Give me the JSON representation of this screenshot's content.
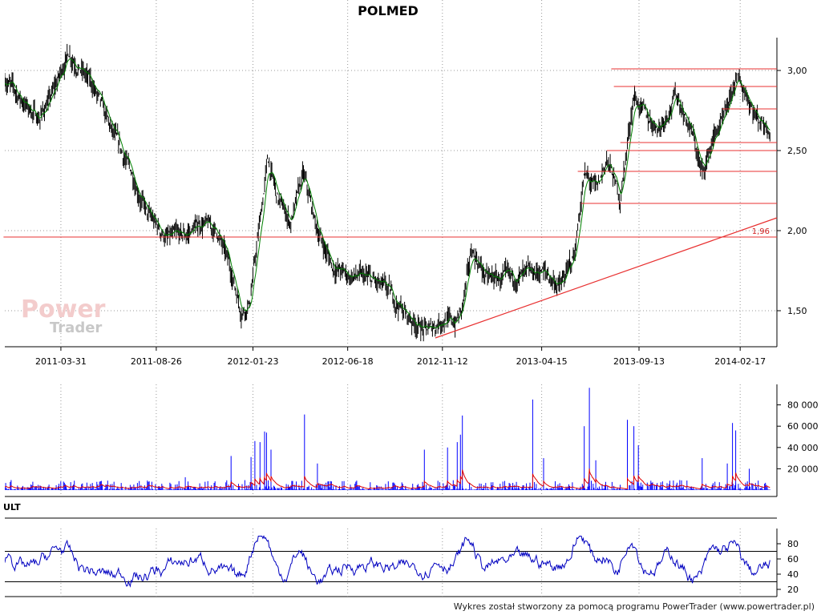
{
  "title": "POLMED",
  "watermark": {
    "line1": "Power",
    "line2": "Trader"
  },
  "footer": "Wykres został stworzony za pomocą programu PowerTrader (www.powertrader.pl)",
  "colors": {
    "price_line": "#008000",
    "bar": "#000000",
    "support_lines": "#e83030",
    "volume": "#0000ff",
    "volume_avg": "#e00000",
    "osc_line": "#0000c0",
    "grid": "#999999"
  },
  "chart_data": [
    {
      "type": "line",
      "panel": "price",
      "title": "POLMED",
      "x_labels": [
        "2011-03-31",
        "2011-08-26",
        "2012-01-23",
        "2012-06-18",
        "2012-11-12",
        "2013-04-15",
        "2013-09-13",
        "2014-02-17"
      ],
      "y_ticks": [
        "1,50",
        "2,00",
        "2,50",
        "3,00"
      ],
      "ylim": [
        1.3,
        3.2
      ],
      "price_keypoints": [
        {
          "date": "2011-01-03",
          "close": 2.95
        },
        {
          "date": "2011-02-01",
          "close": 2.8
        },
        {
          "date": "2011-02-25",
          "close": 2.7
        },
        {
          "date": "2011-03-18",
          "close": 2.85
        },
        {
          "date": "2011-04-12",
          "close": 3.12
        },
        {
          "date": "2011-05-02",
          "close": 3.0
        },
        {
          "date": "2011-05-20",
          "close": 2.9
        },
        {
          "date": "2011-06-20",
          "close": 2.6
        },
        {
          "date": "2011-07-20",
          "close": 2.35
        },
        {
          "date": "2011-08-12",
          "close": 2.1
        },
        {
          "date": "2011-09-12",
          "close": 1.95
        },
        {
          "date": "2011-10-10",
          "close": 1.97
        },
        {
          "date": "2011-11-04",
          "close": 2.05
        },
        {
          "date": "2011-11-28",
          "close": 2.0
        },
        {
          "date": "2011-12-20",
          "close": 1.75
        },
        {
          "date": "2012-01-05",
          "close": 1.5
        },
        {
          "date": "2012-01-18",
          "close": 1.55
        },
        {
          "date": "2012-02-06",
          "close": 2.15
        },
        {
          "date": "2012-02-15",
          "close": 2.45
        },
        {
          "date": "2012-03-01",
          "close": 2.2
        },
        {
          "date": "2012-03-22",
          "close": 2.05
        },
        {
          "date": "2012-04-10",
          "close": 2.35
        },
        {
          "date": "2012-05-02",
          "close": 2.0
        },
        {
          "date": "2012-05-25",
          "close": 1.78
        },
        {
          "date": "2012-06-18",
          "close": 1.72
        },
        {
          "date": "2012-07-20",
          "close": 1.7
        },
        {
          "date": "2012-08-20",
          "close": 1.62
        },
        {
          "date": "2012-09-20",
          "close": 1.46
        },
        {
          "date": "2012-10-20",
          "close": 1.37
        },
        {
          "date": "2012-11-12",
          "close": 1.45
        },
        {
          "date": "2012-12-01",
          "close": 1.42
        },
        {
          "date": "2012-12-12",
          "close": 1.5
        },
        {
          "date": "2012-12-28",
          "close": 1.88
        },
        {
          "date": "2013-01-20",
          "close": 1.7
        },
        {
          "date": "2013-03-01",
          "close": 1.7
        },
        {
          "date": "2013-03-25",
          "close": 1.72
        },
        {
          "date": "2013-04-15",
          "close": 1.75
        },
        {
          "date": "2013-05-15",
          "close": 1.65
        },
        {
          "date": "2013-06-05",
          "close": 1.85
        },
        {
          "date": "2013-06-20",
          "close": 2.35
        },
        {
          "date": "2013-07-10",
          "close": 2.25
        },
        {
          "date": "2013-07-25",
          "close": 2.45
        },
        {
          "date": "2013-08-15",
          "close": 2.2
        },
        {
          "date": "2013-09-05",
          "close": 2.85
        },
        {
          "date": "2013-09-25",
          "close": 2.7
        },
        {
          "date": "2013-10-15",
          "close": 2.65
        },
        {
          "date": "2013-11-10",
          "close": 2.85
        },
        {
          "date": "2013-12-05",
          "close": 2.6
        },
        {
          "date": "2013-12-20",
          "close": 2.35
        },
        {
          "date": "2014-01-08",
          "close": 2.6
        },
        {
          "date": "2014-01-25",
          "close": 2.7
        },
        {
          "date": "2014-02-10",
          "close": 2.95
        },
        {
          "date": "2014-02-28",
          "close": 2.85
        },
        {
          "date": "2014-03-15",
          "close": 2.7
        },
        {
          "date": "2014-04-05",
          "close": 2.65
        }
      ],
      "horizontal_lines": [
        {
          "value": 3.01,
          "from": "2013-08-01",
          "to": "2014-04-15"
        },
        {
          "value": 2.9,
          "from": "2013-08-05",
          "to": "2014-04-15"
        },
        {
          "value": 2.76,
          "from": "2014-01-20",
          "to": "2014-04-15"
        },
        {
          "value": 2.55,
          "from": "2013-08-15",
          "to": "2014-04-15"
        },
        {
          "value": 2.5,
          "from": "2013-07-25",
          "to": "2014-04-15"
        },
        {
          "value": 2.37,
          "from": "2013-06-10",
          "to": "2014-04-15"
        },
        {
          "value": 2.17,
          "from": "2013-06-15",
          "to": "2014-04-15"
        },
        {
          "value": 1.96,
          "from": "2011-01-01",
          "to": "2014-04-15",
          "label": "1,96"
        }
      ],
      "trendline": {
        "from": {
          "date": "2012-11-01",
          "value": 1.33
        },
        "to": {
          "date": "2014-04-15",
          "value": 2.08
        }
      }
    },
    {
      "type": "bar",
      "panel": "volume",
      "y_ticks": [
        "20 000",
        "40 000",
        "60 000",
        "80 000"
      ],
      "ylim": [
        0,
        100000
      ],
      "spikes": [
        {
          "date": "2011-10-10",
          "value": 12000
        },
        {
          "date": "2011-12-20",
          "value": 32000
        },
        {
          "date": "2012-01-20",
          "value": 31000
        },
        {
          "date": "2012-01-26",
          "value": 46000
        },
        {
          "date": "2012-02-03",
          "value": 45000
        },
        {
          "date": "2012-02-10",
          "value": 55000
        },
        {
          "date": "2012-02-13",
          "value": 54000
        },
        {
          "date": "2012-02-20",
          "value": 38000
        },
        {
          "date": "2012-04-12",
          "value": 71000
        },
        {
          "date": "2012-05-02",
          "value": 25000
        },
        {
          "date": "2012-10-15",
          "value": 38000
        },
        {
          "date": "2012-11-20",
          "value": 40000
        },
        {
          "date": "2012-12-05",
          "value": 45000
        },
        {
          "date": "2012-12-10",
          "value": 52000
        },
        {
          "date": "2012-12-13",
          "value": 70000
        },
        {
          "date": "2013-04-01",
          "value": 85000
        },
        {
          "date": "2013-04-18",
          "value": 30000
        },
        {
          "date": "2013-06-20",
          "value": 60000
        },
        {
          "date": "2013-06-28",
          "value": 96000
        },
        {
          "date": "2013-07-08",
          "value": 28000
        },
        {
          "date": "2013-08-26",
          "value": 66000
        },
        {
          "date": "2013-09-05",
          "value": 60000
        },
        {
          "date": "2013-09-12",
          "value": 42000
        },
        {
          "date": "2013-12-20",
          "value": 30000
        },
        {
          "date": "2014-01-28",
          "value": 25000
        },
        {
          "date": "2014-02-05",
          "value": 63000
        },
        {
          "date": "2014-02-10",
          "value": 56000
        },
        {
          "date": "2014-03-03",
          "value": 20000
        }
      ]
    },
    {
      "type": "line",
      "panel": "oscillator",
      "title": "ULT",
      "y_ticks": [
        "20",
        "40",
        "60",
        "80"
      ],
      "ylim": [
        15,
        95
      ],
      "reference_lines": [
        30,
        70
      ]
    }
  ]
}
